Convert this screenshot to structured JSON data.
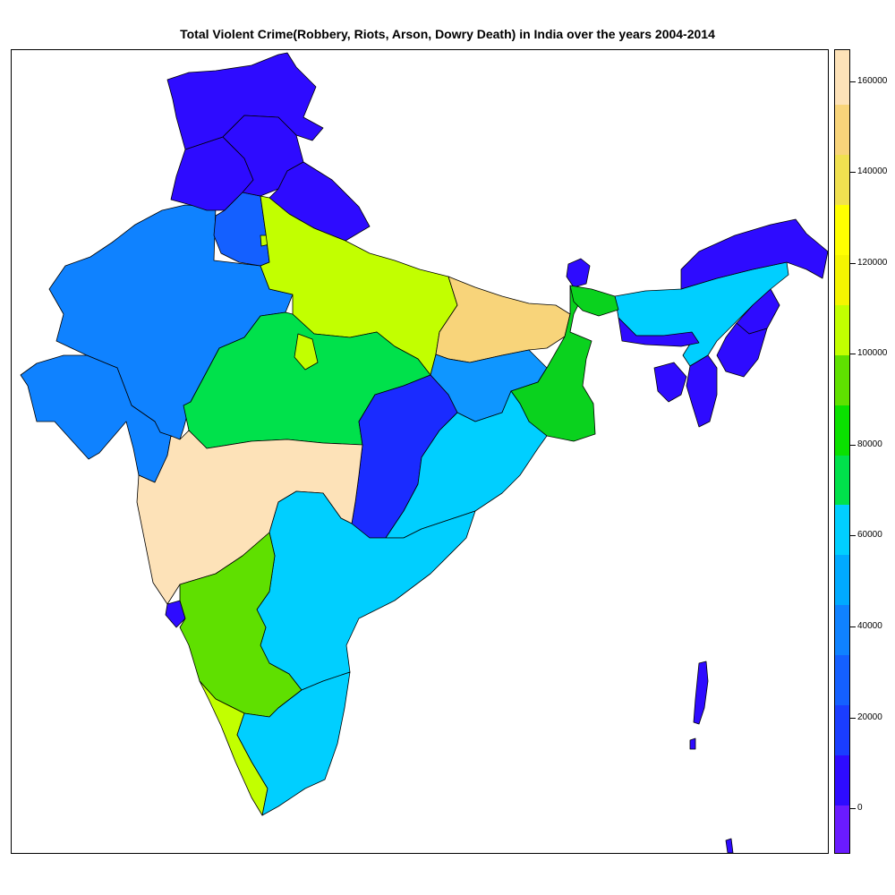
{
  "map": {
    "title": "Total Violent Crime(Robbery, Riots, Arson, Dowry Death) in India over the years 2004-2014",
    "legend": {
      "min": -10000,
      "max": 167000,
      "ticks": [
        0,
        20000,
        40000,
        60000,
        80000,
        100000,
        120000,
        140000,
        160000
      ],
      "tick_labels": [
        "0",
        "20000",
        "40000",
        "60000",
        "80000",
        "100000",
        "120000",
        "140000",
        "160000"
      ],
      "bands": [
        {
          "from": -10000,
          "to": 1000,
          "color": "#6a1bff"
        },
        {
          "from": 1000,
          "to": 12000,
          "color": "#2e0bff"
        },
        {
          "from": 12000,
          "to": 23000,
          "color": "#1a3dff"
        },
        {
          "from": 23000,
          "to": 34000,
          "color": "#1460ff"
        },
        {
          "from": 34000,
          "to": 45000,
          "color": "#0f82ff"
        },
        {
          "from": 45000,
          "to": 56000,
          "color": "#00aaff"
        },
        {
          "from": 56000,
          "to": 67000,
          "color": "#00cfff"
        },
        {
          "from": 67000,
          "to": 78000,
          "color": "#00e14b"
        },
        {
          "from": 78000,
          "to": 89000,
          "color": "#0ae000"
        },
        {
          "from": 89000,
          "to": 100000,
          "color": "#5fe000"
        },
        {
          "from": 100000,
          "to": 111000,
          "color": "#c2ff00"
        },
        {
          "from": 111000,
          "to": 122000,
          "color": "#f5f500"
        },
        {
          "from": 122000,
          "to": 133000,
          "color": "#ffff00"
        },
        {
          "from": 133000,
          "to": 144000,
          "color": "#f0e050"
        },
        {
          "from": 144000,
          "to": 155000,
          "color": "#f8d47a"
        },
        {
          "from": 155000,
          "to": 167000,
          "color": "#fde2b8"
        }
      ]
    },
    "state_colors": {
      "jammu_kashmir": "#2e0bff",
      "himachal": "#2e0bff",
      "punjab": "#2e0bff",
      "uttarakhand": "#2e0bff",
      "haryana": "#1460ff",
      "rajasthan": "#0f82ff",
      "gujarat": "#0f82ff",
      "uttar_pradesh": "#c2ff00",
      "bihar": "#f8d47a",
      "madhya_pradesh": "#00e14b",
      "maharashtra": "#fde2b8",
      "chhattisgarh": "#1a2bff",
      "jharkhand": "#0f96ff",
      "west_bengal": "#0ad21e",
      "odisha": "#00cfff",
      "andhra_pradesh": "#00cfff",
      "karnataka": "#5fe000",
      "goa": "#2e0bff",
      "kerala": "#c2ff00",
      "tamil_nadu": "#00cfff",
      "sikkim": "#2e0bff",
      "assam": "#00cfff",
      "arunachal": "#2e0bff",
      "nagaland": "#2e0bff",
      "manipur": "#2e0bff",
      "mizoram": "#2e0bff",
      "tripura": "#2e0bff",
      "meghalaya": "#2e0bff",
      "delhi": "#c2ff00",
      "andaman": "#2e0bff"
    }
  }
}
